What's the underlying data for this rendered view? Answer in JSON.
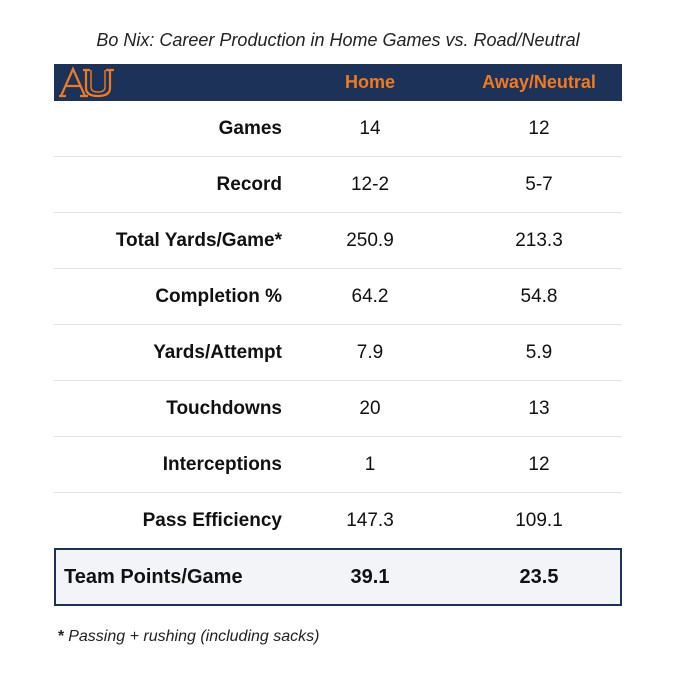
{
  "title": "Bo Nix: Career Production in Home Games vs. Road/Neutral",
  "logo": {
    "icon": "auburn-au-logo-icon",
    "color": "#f07a1f"
  },
  "colors": {
    "header_bg": "#1d3259",
    "header_text": "#f07a1f",
    "total_bg": "#f3f4f7"
  },
  "chart_data": {
    "type": "table",
    "title": "Bo Nix: Career Production in Home Games vs. Road/Neutral",
    "columns": [
      "Home",
      "Away/Neutral"
    ],
    "rows": [
      {
        "label": "Games",
        "home": "14",
        "away": "12"
      },
      {
        "label": "Record",
        "home": "12-2",
        "away": "5-7"
      },
      {
        "label": "Total Yards/Game*",
        "home": "250.9",
        "away": "213.3"
      },
      {
        "label": "Completion %",
        "home": "64.2",
        "away": "54.8"
      },
      {
        "label": "Yards/Attempt",
        "home": "7.9",
        "away": "5.9"
      },
      {
        "label": "Touchdowns",
        "home": "20",
        "away": "13"
      },
      {
        "label": "Interceptions",
        "home": "1",
        "away": "12"
      },
      {
        "label": "Pass Efficiency",
        "home": "147.3",
        "away": "109.1"
      }
    ],
    "total_row": {
      "label": "Team Points/Game",
      "home": "39.1",
      "away": "23.5"
    }
  },
  "footnote": {
    "marker": "*",
    "text": "Passing + rushing (including sacks)"
  }
}
